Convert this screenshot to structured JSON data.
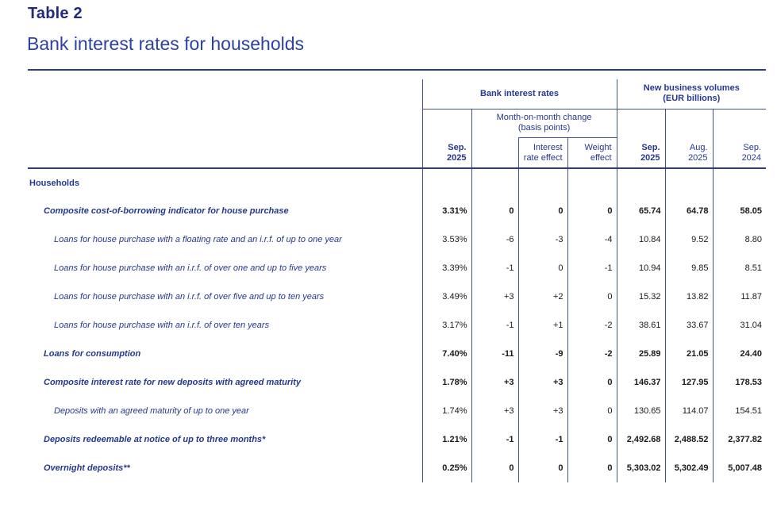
{
  "page": {
    "title": "Table 2",
    "subtitle": "Bank interest rates for households"
  },
  "table": {
    "group_headers": {
      "bank_interest_rates": "Bank interest rates",
      "new_business_volumes": "New business volumes\n(EUR billions)"
    },
    "sub_headers": {
      "mom_change": "Month-on-month change\n(basis points)",
      "rate_period": "Sep.\n2025",
      "interest_rate_effect": "Interest\nrate effect",
      "weight_effect": "Weight\neffect",
      "volume_period_1": "Sep.\n2025",
      "volume_period_2": "Aug.\n2025",
      "volume_period_3": "Sep.\n2024"
    },
    "section_label": "Households",
    "column_keys": [
      "rate-sep-2025",
      "mom-change",
      "interest-rate-effect",
      "weight-effect",
      "volume-sep-2025",
      "volume-aug-2025",
      "volume-sep-2024"
    ],
    "rows": [
      {
        "label": "Composite cost-of-borrowing indicator for house purchase",
        "indent": 1,
        "bold": true,
        "values": [
          "3.31%",
          "0",
          "0",
          "0",
          "65.74",
          "64.78",
          "58.05"
        ]
      },
      {
        "label": "Loans for house purchase with a floating rate and an i.r.f. of up to one year",
        "indent": 2,
        "bold": false,
        "values": [
          "3.53%",
          "-6",
          "-3",
          "-4",
          "10.84",
          "9.52",
          "8.80"
        ]
      },
      {
        "label": "Loans for house purchase with an i.r.f. of over one and up to five years",
        "indent": 2,
        "bold": false,
        "values": [
          "3.39%",
          "-1",
          "0",
          "-1",
          "10.94",
          "9.85",
          "8.51"
        ]
      },
      {
        "label": "Loans for house purchase with an i.r.f. of over five and up to ten years",
        "indent": 2,
        "bold": false,
        "values": [
          "3.49%",
          "+3",
          "+2",
          "0",
          "15.32",
          "13.82",
          "11.87"
        ]
      },
      {
        "label": "Loans for house purchase with an i.r.f. of over ten years",
        "indent": 2,
        "bold": false,
        "values": [
          "3.17%",
          "-1",
          "+1",
          "-2",
          "38.61",
          "33.67",
          "31.04"
        ]
      },
      {
        "label": "Loans for consumption",
        "indent": 1,
        "bold": true,
        "values": [
          "7.40%",
          "-11",
          "-9",
          "-2",
          "25.89",
          "21.05",
          "24.40"
        ]
      },
      {
        "label": "Composite interest rate for new deposits with agreed maturity",
        "indent": 1,
        "bold": true,
        "values": [
          "1.78%",
          "+3",
          "+3",
          "0",
          "146.37",
          "127.95",
          "178.53"
        ]
      },
      {
        "label": "Deposits with an agreed maturity of up to one year",
        "indent": 2,
        "bold": false,
        "values": [
          "1.74%",
          "+3",
          "+3",
          "0",
          "130.65",
          "114.07",
          "154.51"
        ]
      },
      {
        "label": "Deposits redeemable at notice of up to three months*",
        "indent": 1,
        "bold": true,
        "values": [
          "1.21%",
          "-1",
          "-1",
          "0",
          "2,492.68",
          "2,488.52",
          "2,377.82"
        ]
      },
      {
        "label": "Overnight deposits**",
        "indent": 1,
        "bold": true,
        "values": [
          "0.25%",
          "0",
          "0",
          "0",
          "5,303.02",
          "5,302.49",
          "5,007.48"
        ]
      }
    ],
    "colors": {
      "title": "#222a7e",
      "subtitle": "#2d41a5",
      "navy_text": "#24388f",
      "number_text": "#1a1a1a",
      "border_thin": "#41548e",
      "border_thick": "#2b3e80"
    }
  }
}
